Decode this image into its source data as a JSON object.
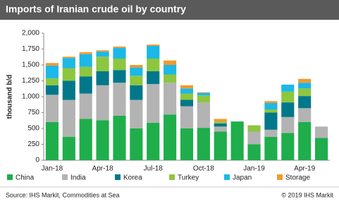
{
  "chart_data": {
    "type": "bar",
    "stacked": true,
    "title": "Imports of Iranian crude oil by country",
    "y_label": "thousand b/d",
    "source": "Source: IHS Markit, Commodities at Sea",
    "copyright": "© 2019 IHS Markit",
    "categories": [
      "Jan-18",
      null,
      null,
      "Apr-18",
      null,
      null,
      "Jul-18",
      null,
      null,
      "Oct-18",
      null,
      null,
      "Jan-19",
      null,
      null,
      "Apr-19",
      null
    ],
    "series": [
      {
        "name": "China",
        "color": "#1fae4b",
        "values": [
          600,
          370,
          650,
          630,
          700,
          500,
          590,
          720,
          500,
          510,
          450,
          610,
          250,
          370,
          430,
          600,
          350
        ]
      },
      {
        "name": "India",
        "color": "#b3b3b3",
        "values": [
          430,
          580,
          400,
          550,
          520,
          450,
          610,
          500,
          350,
          400,
          80,
          0,
          200,
          110,
          250,
          220,
          180
        ]
      },
      {
        "name": "Korea",
        "color": "#00788a",
        "values": [
          150,
          300,
          270,
          220,
          200,
          230,
          200,
          0,
          100,
          0,
          50,
          0,
          0,
          270,
          230,
          190,
          0
        ]
      },
      {
        "name": "Turkey",
        "color": "#8dc63f",
        "values": [
          110,
          200,
          150,
          230,
          180,
          150,
          200,
          130,
          100,
          110,
          30,
          0,
          100,
          50,
          170,
          120,
          0
        ]
      },
      {
        "name": "Japan",
        "color": "#1cb8e8",
        "values": [
          200,
          160,
          200,
          80,
          170,
          130,
          200,
          150,
          80,
          40,
          0,
          0,
          0,
          100,
          110,
          90,
          0
        ]
      },
      {
        "name": "Storage",
        "color": "#f39a2b",
        "values": [
          40,
          20,
          30,
          20,
          20,
          40,
          20,
          70,
          50,
          10,
          40,
          0,
          0,
          30,
          0,
          60,
          0
        ]
      }
    ],
    "ylim": [
      0,
      2000
    ],
    "yticks": [
      0,
      250,
      500,
      750,
      {
        "value": 1000,
        "label": "1,000"
      },
      {
        "value": 1250,
        "label": "1,250"
      },
      {
        "value": 1500,
        "label": "1,500"
      },
      {
        "value": 1750,
        "label": "1,750"
      },
      {
        "value": 2000,
        "label": "2,000"
      }
    ],
    "grid": false
  }
}
